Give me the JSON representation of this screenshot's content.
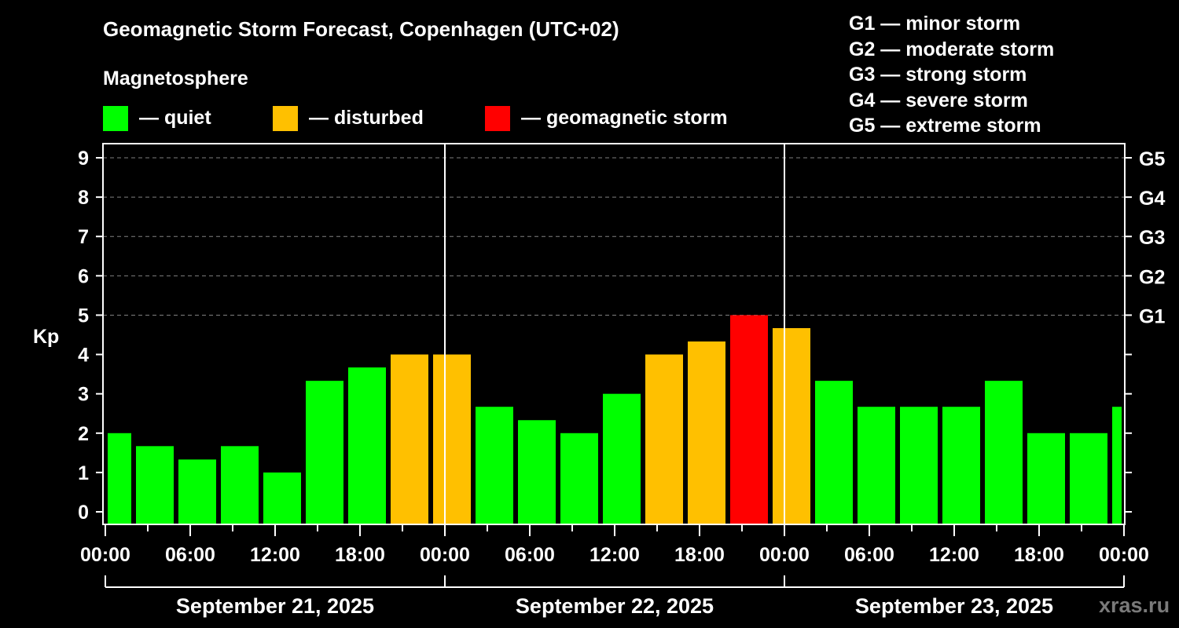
{
  "chart_data": {
    "type": "bar",
    "title": "Geomagnetic Storm Forecast, Copenhagen (UTC+02)",
    "subtitle": "Magnetosphere",
    "ylabel": "Kp",
    "ylim": [
      0,
      9
    ],
    "yticks": [
      0,
      1,
      2,
      3,
      4,
      5,
      6,
      7,
      8,
      9
    ],
    "right_ticks": [
      {
        "kp": 5,
        "label": "G1"
      },
      {
        "kp": 6,
        "label": "G2"
      },
      {
        "kp": 7,
        "label": "G3"
      },
      {
        "kp": 8,
        "label": "G4"
      },
      {
        "kp": 9,
        "label": "G5"
      }
    ],
    "grid": "dashed horizontal at Kp 5-9",
    "x_range_hours": [
      0,
      72
    ],
    "xtick_labels": [
      "00:00",
      "06:00",
      "12:00",
      "18:00",
      "00:00",
      "06:00",
      "12:00",
      "18:00",
      "00:00",
      "06:00",
      "12:00",
      "18:00",
      "00:00"
    ],
    "days": [
      "September 21, 2025",
      "September 22, 2025",
      "September 23, 2025"
    ],
    "legend": [
      {
        "label": "— quiet",
        "color": "#00ff00"
      },
      {
        "label": "— disturbed",
        "color": "#ffc000"
      },
      {
        "label": "— geomagnetic storm",
        "color": "#ff0000"
      }
    ],
    "storm_levels": [
      "G1 — minor storm",
      "G2 — moderate storm",
      "G3 — strong storm",
      "G4 — severe storm",
      "G5 — extreme storm"
    ],
    "bars": [
      {
        "start": 0,
        "end": 2,
        "kp": 2.0,
        "level": "quiet"
      },
      {
        "start": 2,
        "end": 5,
        "kp": 1.67,
        "level": "quiet"
      },
      {
        "start": 5,
        "end": 8,
        "kp": 1.33,
        "level": "quiet"
      },
      {
        "start": 8,
        "end": 11,
        "kp": 1.67,
        "level": "quiet"
      },
      {
        "start": 11,
        "end": 14,
        "kp": 1.0,
        "level": "quiet"
      },
      {
        "start": 14,
        "end": 17,
        "kp": 3.33,
        "level": "quiet"
      },
      {
        "start": 17,
        "end": 20,
        "kp": 3.67,
        "level": "quiet"
      },
      {
        "start": 20,
        "end": 23,
        "kp": 4.0,
        "level": "disturbed"
      },
      {
        "start": 23,
        "end": 26,
        "kp": 4.0,
        "level": "disturbed"
      },
      {
        "start": 26,
        "end": 29,
        "kp": 2.67,
        "level": "quiet"
      },
      {
        "start": 29,
        "end": 32,
        "kp": 2.33,
        "level": "quiet"
      },
      {
        "start": 32,
        "end": 35,
        "kp": 2.0,
        "level": "quiet"
      },
      {
        "start": 35,
        "end": 38,
        "kp": 3.0,
        "level": "quiet"
      },
      {
        "start": 38,
        "end": 41,
        "kp": 4.0,
        "level": "disturbed"
      },
      {
        "start": 41,
        "end": 44,
        "kp": 4.33,
        "level": "disturbed"
      },
      {
        "start": 44,
        "end": 47,
        "kp": 5.0,
        "level": "storm"
      },
      {
        "start": 47,
        "end": 50,
        "kp": 4.67,
        "level": "disturbed"
      },
      {
        "start": 50,
        "end": 53,
        "kp": 3.33,
        "level": "quiet"
      },
      {
        "start": 53,
        "end": 56,
        "kp": 2.67,
        "level": "quiet"
      },
      {
        "start": 56,
        "end": 59,
        "kp": 2.67,
        "level": "quiet"
      },
      {
        "start": 59,
        "end": 62,
        "kp": 2.67,
        "level": "quiet"
      },
      {
        "start": 62,
        "end": 65,
        "kp": 3.33,
        "level": "quiet"
      },
      {
        "start": 65,
        "end": 68,
        "kp": 2.0,
        "level": "quiet"
      },
      {
        "start": 68,
        "end": 71,
        "kp": 2.0,
        "level": "quiet"
      },
      {
        "start": 71,
        "end": 72,
        "kp": 2.67,
        "level": "quiet"
      }
    ],
    "level_colors": {
      "quiet": "#00ff00",
      "disturbed": "#ffc000",
      "storm": "#ff0000"
    }
  },
  "watermark": "xras.ru"
}
